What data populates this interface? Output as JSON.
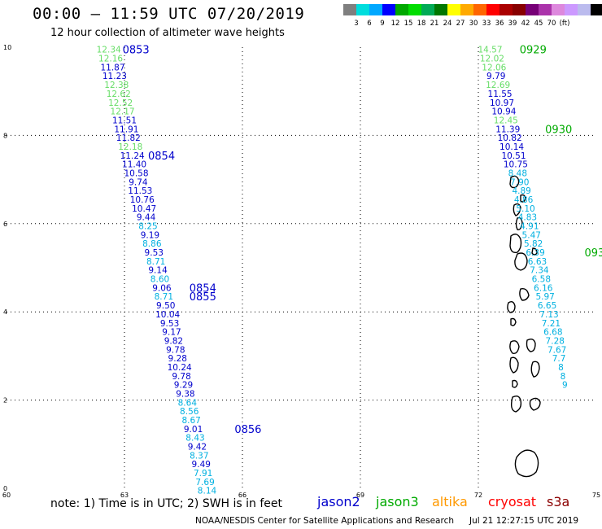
{
  "header": {
    "title": "00:00 – 11:59 UTC 07/20/2019",
    "subtitle": "12 hour collection of altimeter wave heights"
  },
  "colorbar": {
    "colors": [
      "#7f7f7f",
      "#00dddd",
      "#00a8ff",
      "#0000ff",
      "#00a800",
      "#00dd00",
      "#00aa55",
      "#007700",
      "#ffff00",
      "#ffaa00",
      "#ff6600",
      "#ff0000",
      "#aa0000",
      "#880000",
      "#770077",
      "#aa33aa",
      "#dd88dd",
      "#cc99ff",
      "#bbbbee",
      "#000000"
    ],
    "labels": [
      "3",
      "6",
      "9",
      "12",
      "15",
      "18",
      "21",
      "24",
      "27",
      "30",
      "33",
      "36",
      "39",
      "42",
      "45",
      "70",
      "(ft)"
    ]
  },
  "axes": {
    "x_ticks": [
      "60",
      "63",
      "66",
      "69",
      "72",
      "75"
    ],
    "y_ticks": [
      "0",
      "2",
      "4",
      "6",
      "8",
      "10"
    ],
    "xlim": [
      60,
      75
    ],
    "ylim": [
      0,
      10
    ]
  },
  "satellite_colors": {
    "jason2": "#0000cc",
    "jason3": "#00aa00",
    "cryosat": "#ff0000",
    "altika": "#ff9900",
    "s3a": "#8b0000",
    "light_green": "#66dd66",
    "cyan": "#00b0e0"
  },
  "tracks": [
    {
      "name": "left-track",
      "points": [
        {
          "lon": 62.6,
          "lat": 9.95,
          "value": "12.34",
          "color": "light_green"
        },
        {
          "lon": 62.65,
          "lat": 9.75,
          "value": "12.16",
          "color": "light_green"
        },
        {
          "lon": 62.7,
          "lat": 9.55,
          "value": "11.87",
          "color": "jason2"
        },
        {
          "lon": 62.75,
          "lat": 9.35,
          "value": "11.23",
          "color": "jason2"
        },
        {
          "lon": 62.8,
          "lat": 9.15,
          "value": "12.38",
          "color": "light_green"
        },
        {
          "lon": 62.85,
          "lat": 8.95,
          "value": "12.62",
          "color": "light_green"
        },
        {
          "lon": 62.9,
          "lat": 8.75,
          "value": "12.52",
          "color": "light_green"
        },
        {
          "lon": 62.95,
          "lat": 8.55,
          "value": "12.17",
          "color": "light_green"
        },
        {
          "lon": 63.0,
          "lat": 8.35,
          "value": "11.51",
          "color": "jason2"
        },
        {
          "lon": 63.05,
          "lat": 8.15,
          "value": "11.91",
          "color": "jason2"
        },
        {
          "lon": 63.1,
          "lat": 7.95,
          "value": "11.82",
          "color": "jason2"
        },
        {
          "lon": 63.15,
          "lat": 7.75,
          "value": "12.18",
          "color": "light_green"
        },
        {
          "lon": 63.2,
          "lat": 7.55,
          "value": "11.24",
          "color": "jason2"
        },
        {
          "lon": 63.25,
          "lat": 7.35,
          "value": "11.40",
          "color": "jason2"
        },
        {
          "lon": 63.3,
          "lat": 7.15,
          "value": "10.58",
          "color": "jason2"
        },
        {
          "lon": 63.35,
          "lat": 6.95,
          "value": "9.74",
          "color": "jason2"
        },
        {
          "lon": 63.4,
          "lat": 6.75,
          "value": "11.53",
          "color": "jason2"
        },
        {
          "lon": 63.45,
          "lat": 6.55,
          "value": "10.76",
          "color": "jason2"
        },
        {
          "lon": 63.5,
          "lat": 6.35,
          "value": "10.47",
          "color": "jason2"
        },
        {
          "lon": 63.55,
          "lat": 6.15,
          "value": "9.44",
          "color": "jason2"
        },
        {
          "lon": 63.6,
          "lat": 5.95,
          "value": "8.25",
          "color": "cyan"
        },
        {
          "lon": 63.65,
          "lat": 5.75,
          "value": "9.19",
          "color": "jason2"
        },
        {
          "lon": 63.7,
          "lat": 5.55,
          "value": "8.86",
          "color": "cyan"
        },
        {
          "lon": 63.75,
          "lat": 5.35,
          "value": "9.53",
          "color": "jason2"
        },
        {
          "lon": 63.8,
          "lat": 5.15,
          "value": "8.71",
          "color": "cyan"
        },
        {
          "lon": 63.85,
          "lat": 4.95,
          "value": "9.14",
          "color": "jason2"
        },
        {
          "lon": 63.9,
          "lat": 4.75,
          "value": "8.60",
          "color": "cyan"
        },
        {
          "lon": 63.95,
          "lat": 4.55,
          "value": "9.06",
          "color": "jason2"
        },
        {
          "lon": 64.0,
          "lat": 4.35,
          "value": "8.71",
          "color": "cyan"
        },
        {
          "lon": 64.05,
          "lat": 4.15,
          "value": "9.50",
          "color": "jason2"
        },
        {
          "lon": 64.1,
          "lat": 3.95,
          "value": "10.04",
          "color": "jason2"
        },
        {
          "lon": 64.15,
          "lat": 3.75,
          "value": "9.53",
          "color": "jason2"
        },
        {
          "lon": 64.2,
          "lat": 3.55,
          "value": "9.17",
          "color": "jason2"
        },
        {
          "lon": 64.25,
          "lat": 3.35,
          "value": "9.82",
          "color": "jason2"
        },
        {
          "lon": 64.3,
          "lat": 3.15,
          "value": "9.78",
          "color": "jason2"
        },
        {
          "lon": 64.35,
          "lat": 2.95,
          "value": "9.28",
          "color": "jason2"
        },
        {
          "lon": 64.4,
          "lat": 2.75,
          "value": "10.24",
          "color": "jason2"
        },
        {
          "lon": 64.45,
          "lat": 2.55,
          "value": "9.78",
          "color": "jason2"
        },
        {
          "lon": 64.5,
          "lat": 2.35,
          "value": "9.29",
          "color": "jason2"
        },
        {
          "lon": 64.55,
          "lat": 2.15,
          "value": "9.38",
          "color": "jason2"
        },
        {
          "lon": 64.6,
          "lat": 1.95,
          "value": "8.64",
          "color": "cyan"
        },
        {
          "lon": 64.65,
          "lat": 1.75,
          "value": "8.56",
          "color": "cyan"
        },
        {
          "lon": 64.7,
          "lat": 1.55,
          "value": "8.67",
          "color": "cyan"
        },
        {
          "lon": 64.75,
          "lat": 1.35,
          "value": "9.01",
          "color": "jason2"
        },
        {
          "lon": 64.8,
          "lat": 1.15,
          "value": "8.43",
          "color": "cyan"
        },
        {
          "lon": 64.85,
          "lat": 0.95,
          "value": "9.42",
          "color": "jason2"
        },
        {
          "lon": 64.9,
          "lat": 0.75,
          "value": "8.37",
          "color": "cyan"
        },
        {
          "lon": 64.95,
          "lat": 0.55,
          "value": "9.49",
          "color": "jason2"
        },
        {
          "lon": 65.0,
          "lat": 0.35,
          "value": "7.91",
          "color": "cyan"
        },
        {
          "lon": 65.05,
          "lat": 0.15,
          "value": "7.69",
          "color": "cyan"
        },
        {
          "lon": 65.1,
          "lat": -0.05,
          "value": "8.14",
          "color": "cyan"
        }
      ],
      "time_labels": [
        {
          "lon": 62.95,
          "lat": 9.95,
          "text": "0853",
          "color": "jason2"
        },
        {
          "lon": 63.6,
          "lat": 7.55,
          "text": "0854",
          "color": "jason2"
        },
        {
          "lon": 64.65,
          "lat": 4.55,
          "text": "0854",
          "color": "jason2"
        },
        {
          "lon": 64.65,
          "lat": 4.35,
          "text": "0855",
          "color": "jason2"
        },
        {
          "lon": 65.8,
          "lat": 1.35,
          "text": "0856",
          "color": "jason2"
        }
      ]
    },
    {
      "name": "right-track",
      "points": [
        {
          "lon": 72.3,
          "lat": 9.95,
          "value": "14.57",
          "color": "light_green"
        },
        {
          "lon": 72.35,
          "lat": 9.75,
          "value": "12.02",
          "color": "light_green"
        },
        {
          "lon": 72.4,
          "lat": 9.55,
          "value": "12.06",
          "color": "light_green"
        },
        {
          "lon": 72.45,
          "lat": 9.35,
          "value": "9.79",
          "color": "jason2"
        },
        {
          "lon": 72.5,
          "lat": 9.15,
          "value": "12.69",
          "color": "light_green"
        },
        {
          "lon": 72.55,
          "lat": 8.95,
          "value": "11.55",
          "color": "jason2"
        },
        {
          "lon": 72.6,
          "lat": 8.75,
          "value": "10.97",
          "color": "jason2"
        },
        {
          "lon": 72.65,
          "lat": 8.55,
          "value": "10.94",
          "color": "jason2"
        },
        {
          "lon": 72.7,
          "lat": 8.35,
          "value": "12.45",
          "color": "light_green"
        },
        {
          "lon": 72.75,
          "lat": 8.15,
          "value": "11.39",
          "color": "jason2"
        },
        {
          "lon": 72.8,
          "lat": 7.95,
          "value": "10.82",
          "color": "jason2"
        },
        {
          "lon": 72.85,
          "lat": 7.75,
          "value": "10.14",
          "color": "jason2"
        },
        {
          "lon": 72.9,
          "lat": 7.55,
          "value": "10.51",
          "color": "jason2"
        },
        {
          "lon": 72.95,
          "lat": 7.35,
          "value": "10.75",
          "color": "jason2"
        },
        {
          "lon": 73.0,
          "lat": 7.15,
          "value": "8.48",
          "color": "cyan"
        },
        {
          "lon": 73.05,
          "lat": 6.95,
          "value": "7.90",
          "color": "cyan"
        },
        {
          "lon": 73.1,
          "lat": 6.75,
          "value": "4.89",
          "color": "cyan"
        },
        {
          "lon": 73.15,
          "lat": 6.55,
          "value": "4.86",
          "color": "cyan"
        },
        {
          "lon": 73.2,
          "lat": 6.35,
          "value": "5.10",
          "color": "cyan"
        },
        {
          "lon": 73.25,
          "lat": 6.15,
          "value": "4.83",
          "color": "cyan"
        },
        {
          "lon": 73.3,
          "lat": 5.95,
          "value": "4.91",
          "color": "cyan"
        },
        {
          "lon": 73.35,
          "lat": 5.75,
          "value": "5.47",
          "color": "cyan"
        },
        {
          "lon": 73.4,
          "lat": 5.55,
          "value": "5.82",
          "color": "cyan"
        },
        {
          "lon": 73.45,
          "lat": 5.35,
          "value": "6.39",
          "color": "cyan"
        },
        {
          "lon": 73.5,
          "lat": 5.15,
          "value": "6.63",
          "color": "cyan"
        },
        {
          "lon": 73.55,
          "lat": 4.95,
          "value": "7.34",
          "color": "cyan"
        },
        {
          "lon": 73.6,
          "lat": 4.75,
          "value": "6.58",
          "color": "cyan"
        },
        {
          "lon": 73.65,
          "lat": 4.55,
          "value": "6.16",
          "color": "cyan"
        },
        {
          "lon": 73.7,
          "lat": 4.35,
          "value": "5.97",
          "color": "cyan"
        },
        {
          "lon": 73.75,
          "lat": 4.15,
          "value": "6.65",
          "color": "cyan"
        },
        {
          "lon": 73.8,
          "lat": 3.95,
          "value": "7.13",
          "color": "cyan"
        },
        {
          "lon": 73.85,
          "lat": 3.75,
          "value": "7.21",
          "color": "cyan"
        },
        {
          "lon": 73.9,
          "lat": 3.55,
          "value": "6.68",
          "color": "cyan"
        },
        {
          "lon": 73.95,
          "lat": 3.35,
          "value": "7.28",
          "color": "cyan"
        },
        {
          "lon": 74.0,
          "lat": 3.15,
          "value": "7.67",
          "color": "cyan"
        },
        {
          "lon": 74.05,
          "lat": 2.95,
          "value": "7.7",
          "color": "cyan"
        },
        {
          "lon": 74.1,
          "lat": 2.75,
          "value": "8",
          "color": "cyan"
        },
        {
          "lon": 74.15,
          "lat": 2.55,
          "value": "8",
          "color": "cyan"
        },
        {
          "lon": 74.2,
          "lat": 2.35,
          "value": "9",
          "color": "cyan"
        }
      ],
      "time_labels": [
        {
          "lon": 73.05,
          "lat": 9.95,
          "text": "0929",
          "color": "jason3"
        },
        {
          "lon": 73.7,
          "lat": 8.15,
          "text": "0930",
          "color": "jason3"
        },
        {
          "lon": 74.7,
          "lat": 5.35,
          "text": "093",
          "color": "jason3"
        }
      ]
    }
  ],
  "notes": "note:  1) Time is in UTC;  2) SWH is in feet",
  "satellites": [
    {
      "name": "jason2",
      "color": "#0000cc"
    },
    {
      "name": "jason3",
      "color": "#00aa00"
    },
    {
      "name": "altika",
      "color": "#ff9900"
    },
    {
      "name": "cryosat",
      "color": "#ff0000"
    },
    {
      "name": "s3a",
      "color": "#8b0000"
    }
  ],
  "footer": {
    "credit": "NOAA/NESDIS Center for Satellite Applications and Research",
    "timestamp": "Jul 21 12:27:15 UTC 2019"
  }
}
